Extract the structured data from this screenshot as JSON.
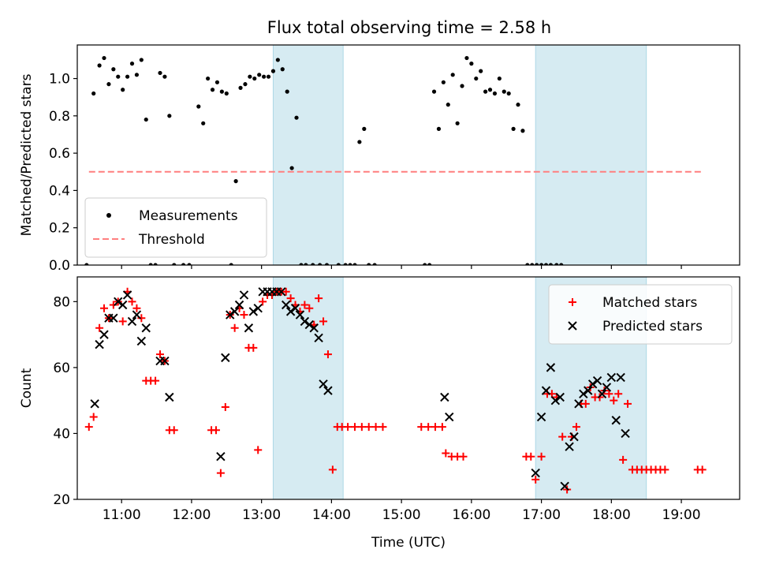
{
  "chart_data": [
    {
      "type": "scatter",
      "title": "Flux total observing time = 2.58 h",
      "xlabel": "",
      "ylabel": "Matched/Predicted stars",
      "xlim": [
        "10:22",
        "19:50"
      ],
      "ylim": [
        0.0,
        1.18
      ],
      "yticks": [
        "0.0",
        "0.2",
        "0.4",
        "0.6",
        "0.8",
        "1.0"
      ],
      "grid": false,
      "legend_position": "lower-left",
      "shaded_intervals": [
        [
          "13:10",
          "14:10"
        ],
        [
          "16:55",
          "18:30"
        ]
      ],
      "threshold": {
        "name": "Threshold",
        "value": 0.5,
        "x_from": "10:32",
        "x_to": "19:18",
        "color": "#ff7f7f",
        "style": "dashed"
      },
      "series": [
        {
          "name": "Measurements",
          "marker": "dot",
          "color": "#000000",
          "points": [
            [
              "10:30",
              0.0
            ],
            [
              "10:36",
              0.92
            ],
            [
              "10:41",
              1.07
            ],
            [
              "10:45",
              1.11
            ],
            [
              "10:49",
              0.97
            ],
            [
              "10:53",
              1.05
            ],
            [
              "10:57",
              1.01
            ],
            [
              "11:01",
              0.94
            ],
            [
              "11:05",
              1.01
            ],
            [
              "11:09",
              1.08
            ],
            [
              "11:13",
              1.02
            ],
            [
              "11:17",
              1.1
            ],
            [
              "11:21",
              0.78
            ],
            [
              "11:25",
              0.0
            ],
            [
              "11:29",
              0.0
            ],
            [
              "11:33",
              1.03
            ],
            [
              "11:37",
              1.01
            ],
            [
              "11:41",
              0.8
            ],
            [
              "11:45",
              0.0
            ],
            [
              "11:53",
              0.0
            ],
            [
              "11:58",
              0.0
            ],
            [
              "12:06",
              0.85
            ],
            [
              "12:10",
              0.76
            ],
            [
              "12:14",
              1.0
            ],
            [
              "12:18",
              0.94
            ],
            [
              "12:22",
              0.98
            ],
            [
              "12:26",
              0.93
            ],
            [
              "12:30",
              0.92
            ],
            [
              "12:34",
              0.0
            ],
            [
              "12:38",
              0.45
            ],
            [
              "12:42",
              0.95
            ],
            [
              "12:46",
              0.97
            ],
            [
              "12:50",
              1.01
            ],
            [
              "12:54",
              1.0
            ],
            [
              "12:58",
              1.02
            ],
            [
              "13:02",
              1.01
            ],
            [
              "13:06",
              1.01
            ],
            [
              "13:10",
              1.04
            ],
            [
              "13:14",
              1.1
            ],
            [
              "13:18",
              1.05
            ],
            [
              "13:22",
              0.93
            ],
            [
              "13:26",
              0.52
            ],
            [
              "13:30",
              0.79
            ],
            [
              "13:34",
              0.0
            ],
            [
              "13:38",
              0.0
            ],
            [
              "13:44",
              0.0
            ],
            [
              "13:50",
              0.0
            ],
            [
              "13:56",
              0.0
            ],
            [
              "14:06",
              0.0
            ],
            [
              "14:12",
              0.0
            ],
            [
              "14:16",
              0.0
            ],
            [
              "14:20",
              0.0
            ],
            [
              "14:24",
              0.66
            ],
            [
              "14:28",
              0.73
            ],
            [
              "14:32",
              0.0
            ],
            [
              "14:37",
              0.0
            ],
            [
              "15:20",
              0.0
            ],
            [
              "15:24",
              0.0
            ],
            [
              "15:28",
              0.93
            ],
            [
              "15:32",
              0.73
            ],
            [
              "15:36",
              0.98
            ],
            [
              "15:40",
              0.86
            ],
            [
              "15:44",
              1.02
            ],
            [
              "15:48",
              0.76
            ],
            [
              "15:52",
              0.96
            ],
            [
              "15:56",
              1.11
            ],
            [
              "16:00",
              1.08
            ],
            [
              "16:04",
              1.0
            ],
            [
              "16:08",
              1.04
            ],
            [
              "16:12",
              0.93
            ],
            [
              "16:16",
              0.94
            ],
            [
              "16:20",
              0.92
            ],
            [
              "16:24",
              1.0
            ],
            [
              "16:28",
              0.93
            ],
            [
              "16:32",
              0.92
            ],
            [
              "16:36",
              0.73
            ],
            [
              "16:40",
              0.86
            ],
            [
              "16:44",
              0.72
            ],
            [
              "16:48",
              0.0
            ],
            [
              "16:52",
              0.0
            ],
            [
              "16:56",
              0.0
            ],
            [
              "17:00",
              0.0
            ],
            [
              "17:04",
              0.0
            ],
            [
              "17:08",
              0.0
            ],
            [
              "17:13",
              0.0
            ],
            [
              "17:17",
              0.0
            ]
          ]
        }
      ]
    },
    {
      "type": "scatter",
      "title": "",
      "xlabel": "Time (UTC)",
      "ylabel": "Count",
      "xlim": [
        "10:22",
        "19:50"
      ],
      "ylim": [
        20,
        87.5
      ],
      "yticks": [
        "20",
        "40",
        "60",
        "80"
      ],
      "xticks": [
        "11:00",
        "12:00",
        "13:00",
        "14:00",
        "15:00",
        "16:00",
        "17:00",
        "18:00",
        "19:00"
      ],
      "grid": false,
      "legend_position": "upper-right",
      "shaded_intervals": [
        [
          "13:10",
          "14:10"
        ],
        [
          "16:55",
          "18:30"
        ]
      ],
      "series": [
        {
          "name": "Matched stars",
          "marker": "plus",
          "color": "#ff0000",
          "points": [
            [
              "10:32",
              42
            ],
            [
              "10:36",
              45
            ],
            [
              "10:41",
              72
            ],
            [
              "10:45",
              78
            ],
            [
              "10:49",
              75
            ],
            [
              "10:53",
              79
            ],
            [
              "10:57",
              80
            ],
            [
              "11:01",
              74
            ],
            [
              "11:05",
              83
            ],
            [
              "11:09",
              80
            ],
            [
              "11:13",
              78
            ],
            [
              "11:17",
              75
            ],
            [
              "11:21",
              56
            ],
            [
              "11:25",
              56
            ],
            [
              "11:29",
              56
            ],
            [
              "11:33",
              64
            ],
            [
              "11:37",
              62
            ],
            [
              "11:41",
              41
            ],
            [
              "11:45",
              41
            ],
            [
              "12:17",
              41
            ],
            [
              "12:21",
              41
            ],
            [
              "12:25",
              28
            ],
            [
              "12:29",
              48
            ],
            [
              "12:33",
              76
            ],
            [
              "12:37",
              72
            ],
            [
              "12:41",
              78
            ],
            [
              "12:45",
              76
            ],
            [
              "12:49",
              66
            ],
            [
              "12:53",
              66
            ],
            [
              "12:57",
              35
            ],
            [
              "13:01",
              80
            ],
            [
              "13:05",
              82
            ],
            [
              "13:09",
              82
            ],
            [
              "13:13",
              83
            ],
            [
              "13:17",
              83
            ],
            [
              "13:21",
              83
            ],
            [
              "13:25",
              81
            ],
            [
              "13:29",
              79
            ],
            [
              "13:33",
              77
            ],
            [
              "13:37",
              79
            ],
            [
              "13:41",
              78
            ],
            [
              "13:45",
              73
            ],
            [
              "13:49",
              81
            ],
            [
              "13:53",
              74
            ],
            [
              "13:57",
              64
            ],
            [
              "14:01",
              29
            ],
            [
              "14:05",
              42
            ],
            [
              "14:09",
              42
            ],
            [
              "14:14",
              42
            ],
            [
              "14:20",
              42
            ],
            [
              "14:26",
              42
            ],
            [
              "14:32",
              42
            ],
            [
              "14:38",
              42
            ],
            [
              "14:44",
              42
            ],
            [
              "15:17",
              42
            ],
            [
              "15:23",
              42
            ],
            [
              "15:29",
              42
            ],
            [
              "15:35",
              42
            ],
            [
              "15:38",
              34
            ],
            [
              "15:43",
              33
            ],
            [
              "15:48",
              33
            ],
            [
              "15:53",
              33
            ],
            [
              "16:47",
              33
            ],
            [
              "16:51",
              33
            ],
            [
              "16:55",
              26
            ],
            [
              "17:00",
              33
            ],
            [
              "17:05",
              52
            ],
            [
              "17:09",
              52
            ],
            [
              "17:13",
              51
            ],
            [
              "17:18",
              39
            ],
            [
              "17:22",
              23
            ],
            [
              "17:26",
              39
            ],
            [
              "17:30",
              42
            ],
            [
              "17:34",
              49
            ],
            [
              "17:38",
              49
            ],
            [
              "17:42",
              54
            ],
            [
              "17:46",
              51
            ],
            [
              "17:50",
              51
            ],
            [
              "17:54",
              53
            ],
            [
              "17:58",
              52
            ],
            [
              "18:02",
              50
            ],
            [
              "18:06",
              52
            ],
            [
              "18:10",
              32
            ],
            [
              "18:14",
              49
            ],
            [
              "18:18",
              29
            ],
            [
              "18:22",
              29
            ],
            [
              "18:26",
              29
            ],
            [
              "18:30",
              29
            ],
            [
              "18:34",
              29
            ],
            [
              "18:38",
              29
            ],
            [
              "18:42",
              29
            ],
            [
              "18:46",
              29
            ],
            [
              "19:14",
              29
            ],
            [
              "19:18",
              29
            ]
          ]
        },
        {
          "name": "Predicted stars",
          "marker": "x",
          "color": "#000000",
          "points": [
            [
              "10:37",
              49
            ],
            [
              "10:41",
              67
            ],
            [
              "10:45",
              70
            ],
            [
              "10:49",
              75
            ],
            [
              "10:53",
              75
            ],
            [
              "10:57",
              80
            ],
            [
              "11:01",
              79
            ],
            [
              "11:05",
              82
            ],
            [
              "11:09",
              74
            ],
            [
              "11:13",
              76
            ],
            [
              "11:17",
              68
            ],
            [
              "11:21",
              72
            ],
            [
              "11:33",
              62
            ],
            [
              "11:37",
              62
            ],
            [
              "11:41",
              51
            ],
            [
              "12:25",
              33
            ],
            [
              "12:29",
              63
            ],
            [
              "12:33",
              76
            ],
            [
              "12:37",
              77
            ],
            [
              "12:41",
              79
            ],
            [
              "12:45",
              82
            ],
            [
              "12:49",
              72
            ],
            [
              "12:53",
              77
            ],
            [
              "12:57",
              78
            ],
            [
              "13:01",
              83
            ],
            [
              "13:05",
              83
            ],
            [
              "13:09",
              83
            ],
            [
              "13:13",
              83
            ],
            [
              "13:17",
              83
            ],
            [
              "13:21",
              79
            ],
            [
              "13:25",
              77
            ],
            [
              "13:29",
              78
            ],
            [
              "13:33",
              76
            ],
            [
              "13:37",
              74
            ],
            [
              "13:41",
              73
            ],
            [
              "13:45",
              72
            ],
            [
              "13:49",
              69
            ],
            [
              "13:53",
              55
            ],
            [
              "13:57",
              53
            ],
            [
              "15:37",
              51
            ],
            [
              "15:41",
              45
            ],
            [
              "16:55",
              28
            ],
            [
              "17:00",
              45
            ],
            [
              "17:04",
              53
            ],
            [
              "17:08",
              60
            ],
            [
              "17:12",
              50
            ],
            [
              "17:16",
              51
            ],
            [
              "17:20",
              24
            ],
            [
              "17:24",
              36
            ],
            [
              "17:28",
              39
            ],
            [
              "17:32",
              49
            ],
            [
              "17:36",
              52
            ],
            [
              "17:40",
              53
            ],
            [
              "17:44",
              55
            ],
            [
              "17:48",
              56
            ],
            [
              "17:52",
              52
            ],
            [
              "17:56",
              54
            ],
            [
              "18:00",
              57
            ],
            [
              "18:04",
              44
            ],
            [
              "18:08",
              57
            ],
            [
              "18:12",
              40
            ]
          ]
        }
      ]
    }
  ]
}
